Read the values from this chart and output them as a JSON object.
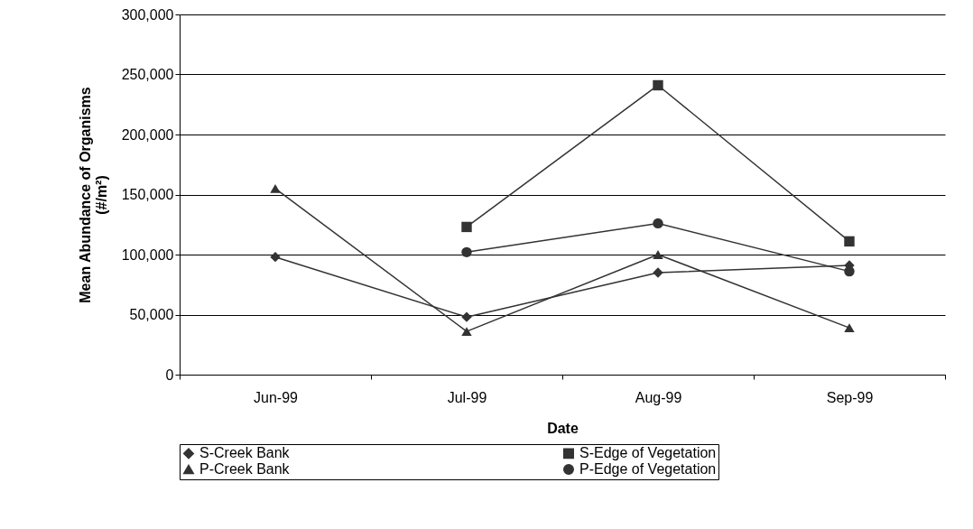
{
  "chart_data": {
    "type": "line",
    "xlabel": "Date",
    "ylabel": "Mean Abundance of Organisms (#/m²)",
    "categories": [
      "Jun-99",
      "Jul-99",
      "Aug-99",
      "Sep-99"
    ],
    "series": [
      {
        "name": "S-Creek Bank",
        "color": "#333333",
        "marker": "diamond",
        "values": [
          98000,
          48000,
          85000,
          91000
        ]
      },
      {
        "name": "S-Edge of Vegetation",
        "color": "#333333",
        "marker": "square",
        "values": [
          null,
          123000,
          241000,
          111000
        ]
      },
      {
        "name": "P-Creek Bank",
        "color": "#333333",
        "marker": "triangle",
        "values": [
          155000,
          36000,
          100000,
          39000
        ]
      },
      {
        "name": "P-Edge of Vegetation",
        "color": "#333333",
        "marker": "circle",
        "values": [
          null,
          102000,
          126000,
          86000
        ]
      }
    ],
    "ylim": [
      0,
      300000
    ],
    "yticks": [
      0,
      {
        "value": 50000,
        "label": "50,000"
      },
      {
        "value": 100000,
        "label": "100,000"
      },
      {
        "value": 150000,
        "label": "150,000"
      },
      {
        "value": 200000,
        "label": "200,000"
      },
      {
        "value": 250000,
        "label": "250,000"
      },
      {
        "value": 300000,
        "label": "300,000"
      }
    ],
    "grid": "y",
    "legend": "bottom",
    "line_style": "solid"
  }
}
